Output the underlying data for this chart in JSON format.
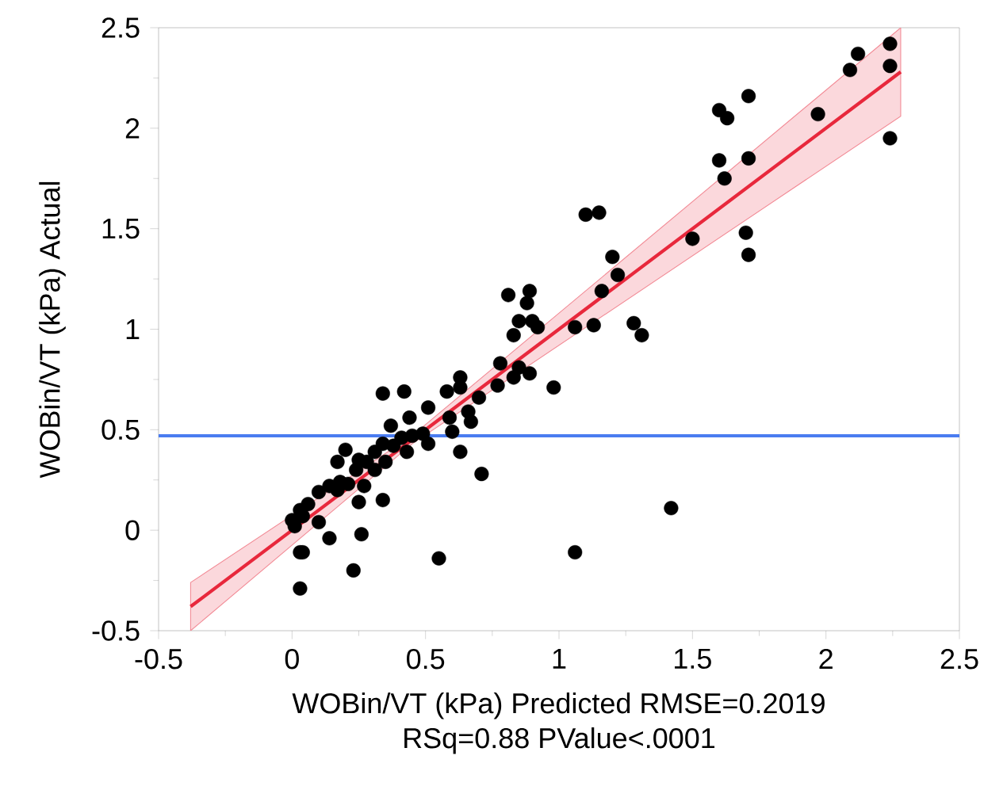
{
  "chart_data": {
    "type": "scatter",
    "xlabel": "WOBin/VT (kPa) Predicted RMSE=0.2019",
    "ylabel": "WOBin/VT (kPa) Actual",
    "annotations": [
      "RSq=0.88 PValue<.0001"
    ],
    "xlim": [
      -0.5,
      2.5
    ],
    "ylim": [
      -0.5,
      2.5
    ],
    "xticks": [
      -0.5,
      0,
      0.5,
      1,
      1.5,
      2,
      2.5
    ],
    "yticks": [
      -0.5,
      0,
      0.5,
      1,
      1.5,
      2,
      2.5
    ],
    "ref_lines": [
      {
        "axis": "y",
        "value": 0.47,
        "color": "#4a7cf0"
      }
    ],
    "series": [
      {
        "color": "#000000",
        "marker": "circle",
        "x": [
          2.24,
          2.12,
          2.09,
          2.24,
          2.24,
          1.97,
          1.71,
          1.6,
          1.63,
          1.6,
          1.71,
          1.62,
          1.5,
          1.7,
          1.71,
          1.1,
          1.15,
          1.2,
          1.22,
          1.16,
          0.81,
          0.89,
          0.88,
          0.85,
          0.9,
          0.92,
          0.83,
          1.06,
          1.13,
          1.28,
          1.31,
          0.78,
          0.77,
          0.85,
          0.83,
          0.89,
          0.98,
          0.63,
          0.63,
          0.58,
          0.7,
          0.59,
          0.66,
          0.67,
          0.71,
          1.42,
          1.06,
          0.34,
          0.42,
          0.51,
          0.44,
          0.37,
          0.63,
          0.55,
          0.2,
          0.17,
          0.27,
          0.25,
          0.34,
          0.26,
          0.14,
          0.03,
          0.04,
          0.23,
          0.03,
          0.1,
          0.01,
          0.03,
          0.06,
          0.1,
          0.14,
          0.18,
          0.21,
          0.24,
          0.28,
          0.31,
          0.34,
          0.38,
          0.41,
          0.45,
          0.49,
          0.51,
          0.43,
          0.35,
          0.31,
          0.25,
          0.17,
          0.0,
          0.04,
          0.6
        ],
        "values": [
          2.42,
          2.37,
          2.29,
          2.31,
          1.95,
          2.07,
          2.16,
          2.09,
          2.05,
          1.84,
          1.85,
          1.75,
          1.45,
          1.48,
          1.37,
          1.57,
          1.58,
          1.36,
          1.27,
          1.19,
          1.17,
          1.19,
          1.13,
          1.04,
          1.04,
          1.01,
          0.97,
          1.01,
          1.02,
          1.03,
          0.97,
          0.83,
          0.72,
          0.81,
          0.76,
          0.78,
          0.71,
          0.76,
          0.71,
          0.69,
          0.66,
          0.56,
          0.59,
          0.54,
          0.28,
          0.11,
          -0.11,
          0.68,
          0.69,
          0.61,
          0.56,
          0.52,
          0.39,
          -0.14,
          0.4,
          0.34,
          0.22,
          0.14,
          0.15,
          -0.02,
          -0.04,
          -0.11,
          -0.11,
          -0.2,
          -0.29,
          0.04,
          0.02,
          0.1,
          0.13,
          0.19,
          0.22,
          0.24,
          0.23,
          0.3,
          0.34,
          0.39,
          0.43,
          0.42,
          0.46,
          0.47,
          0.48,
          0.43,
          0.39,
          0.34,
          0.3,
          0.35,
          0.2,
          0.05,
          0.07,
          0.49
        ]
      },
      {
        "type": "line",
        "marker": "none",
        "color": "#e8283c",
        "x": [
          -0.38,
          0.45,
          2.28
        ],
        "values": [
          -0.38,
          0.45,
          2.28
        ],
        "lower": [
          -0.5,
          0.43,
          2.06
        ],
        "upper": [
          -0.26,
          0.47,
          2.5
        ]
      }
    ]
  }
}
